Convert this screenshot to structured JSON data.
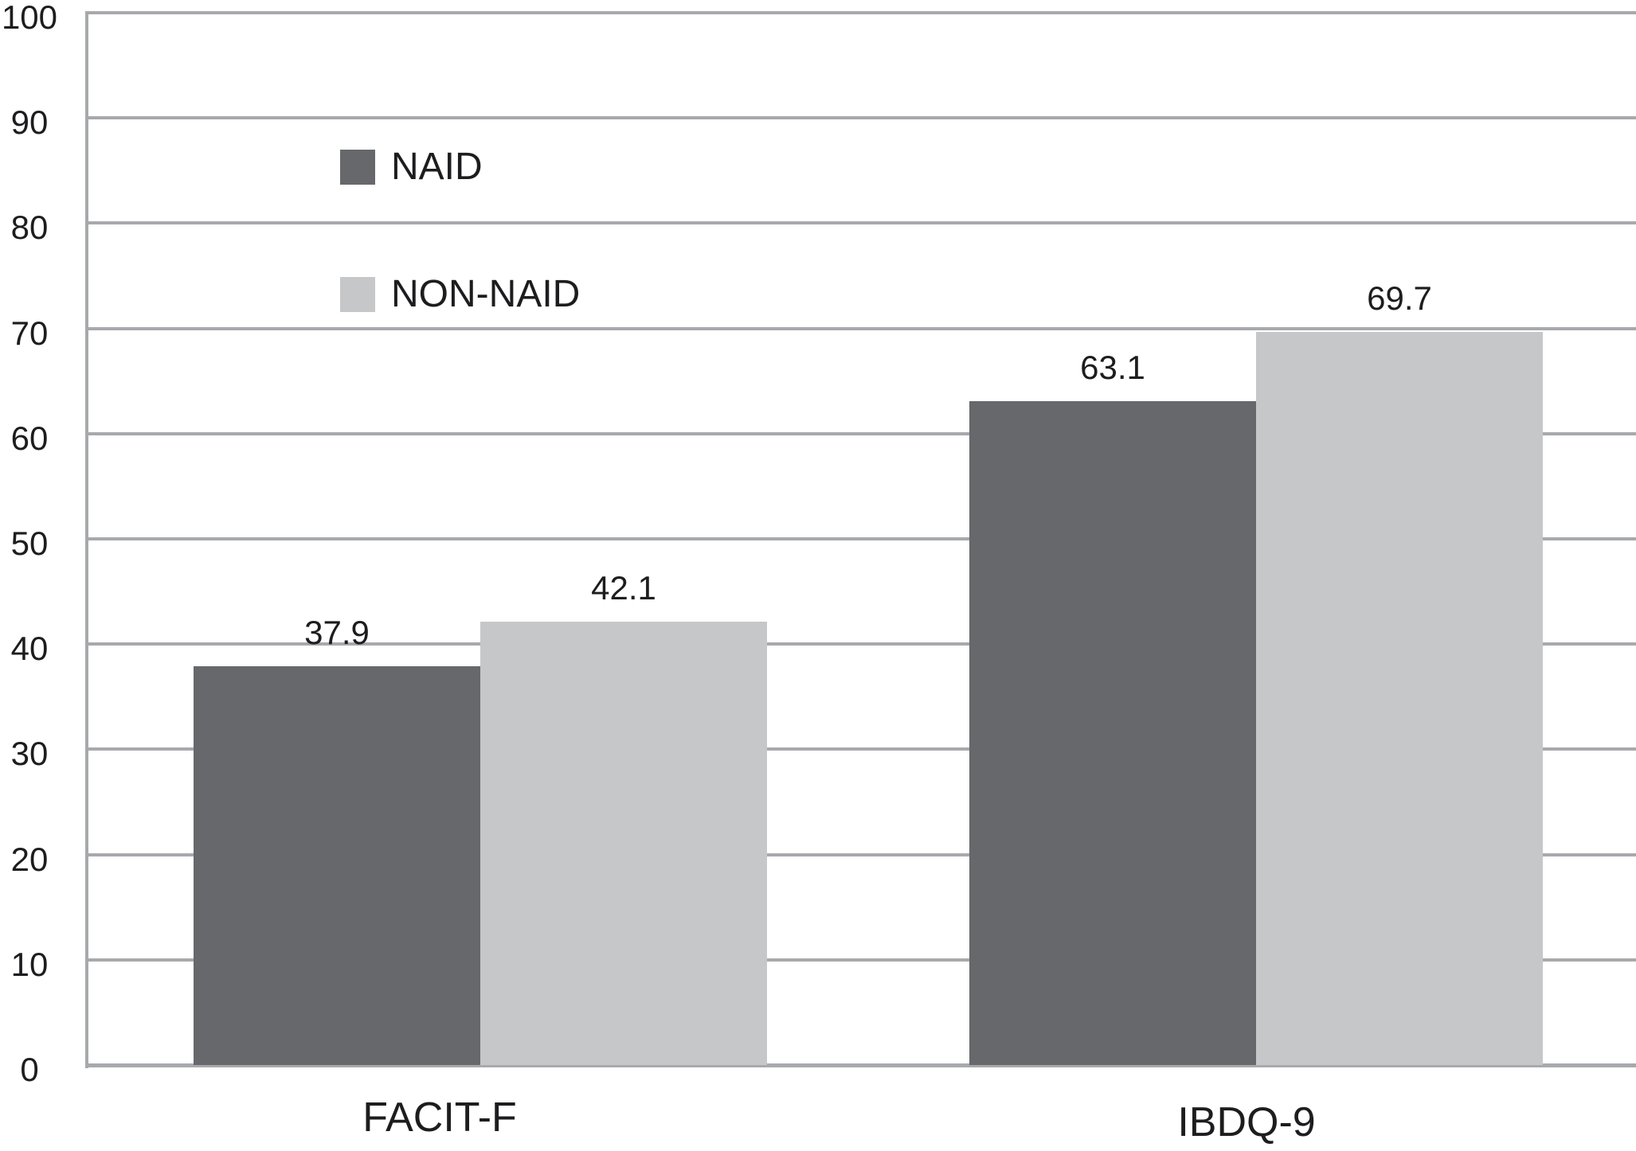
{
  "chart_data": {
    "type": "bar",
    "title": "",
    "xlabel": "",
    "ylabel": "",
    "categories": [
      "FACIT-F",
      "IBDQ-9"
    ],
    "series": [
      {
        "name": "NAID",
        "color": "#66686B",
        "values": [
          37.9,
          63.1
        ]
      },
      {
        "name": "NON-NAID",
        "color": "#C6C7C9",
        "values": [
          42.1,
          69.7
        ]
      }
    ],
    "data_labels": [
      [
        "37.9",
        "63.1"
      ],
      [
        "42.1",
        "69.7"
      ]
    ],
    "ylim": [
      0,
      100
    ],
    "yticks": [
      0,
      10,
      20,
      30,
      40,
      50,
      60,
      70,
      80,
      90,
      100
    ],
    "grid": "horizontal",
    "legend_position": "upper-left-inside",
    "colors": {
      "gridline": "#A7A9AC",
      "axis_line": "#A7A9AC",
      "text": "#1D1D1F",
      "background": "#FFFFFF"
    }
  }
}
